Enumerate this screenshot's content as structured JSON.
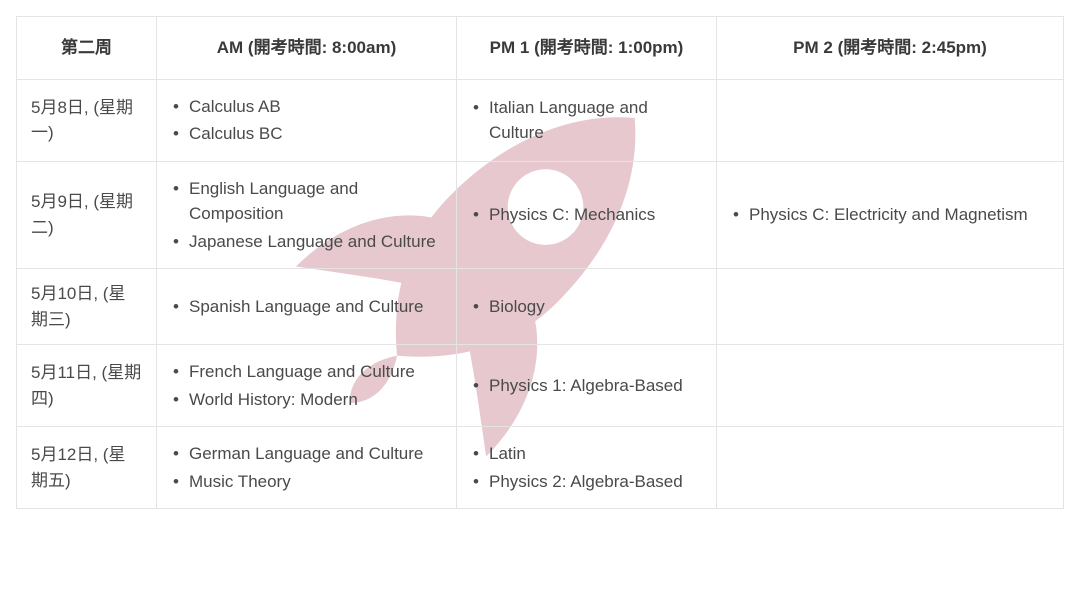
{
  "watermark": {
    "color": "#e6c8ce"
  },
  "columns": {
    "date": "第二周",
    "am": "AM (開考時間: 8:00am)",
    "pm1": "PM 1 (開考時間: 1:00pm)",
    "pm2": "PM 2 (開考時間: 2:45pm)"
  },
  "rows": [
    {
      "date": "5月8日, (星期一)",
      "am": [
        "Calculus AB",
        "Calculus BC"
      ],
      "pm1": [
        "Italian Language and Culture"
      ],
      "pm2": []
    },
    {
      "date": "5月9日, (星期二)",
      "am": [
        "English Language and Composition",
        "Japanese Language and Culture"
      ],
      "pm1": [
        "Physics C: Mechanics"
      ],
      "pm2": [
        "Physics C: Electricity and Magnetism"
      ]
    },
    {
      "date": "5月10日, (星期三)",
      "am": [
        "Spanish Language and Culture"
      ],
      "pm1": [
        "Biology"
      ],
      "pm2": []
    },
    {
      "date": "5月11日, (星期四)",
      "am": [
        "French Language and Culture",
        "World History: Modern"
      ],
      "pm1": [
        "Physics 1: Algebra-Based"
      ],
      "pm2": []
    },
    {
      "date": "5月12日, (星期五)",
      "am": [
        "German Language and Culture",
        "Music Theory"
      ],
      "pm1": [
        "Latin",
        "Physics 2: Algebra-Based"
      ],
      "pm2": []
    }
  ]
}
